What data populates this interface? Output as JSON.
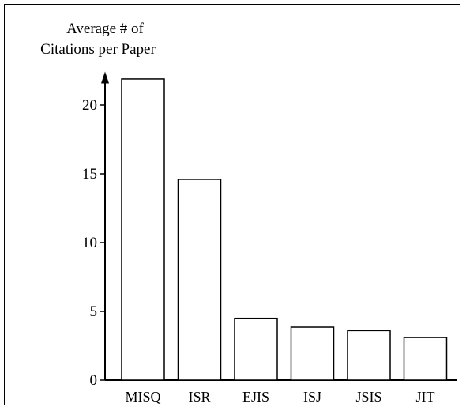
{
  "chart_data": {
    "type": "bar",
    "title": "",
    "xlabel": "",
    "ylabel_lines": [
      "Average # of",
      "Citations per Paper"
    ],
    "categories": [
      "MISQ",
      "ISR",
      "EJIS",
      "ISJ",
      "JSIS",
      "JIT"
    ],
    "values": [
      21.9,
      14.6,
      4.5,
      3.85,
      3.6,
      3.1
    ],
    "ylim": [
      0,
      22.5
    ],
    "yticks": [
      0,
      5,
      10,
      15,
      20
    ],
    "grid": false,
    "legend": "none",
    "bar_fill": "#ffffff",
    "bar_stroke": "#000000"
  }
}
